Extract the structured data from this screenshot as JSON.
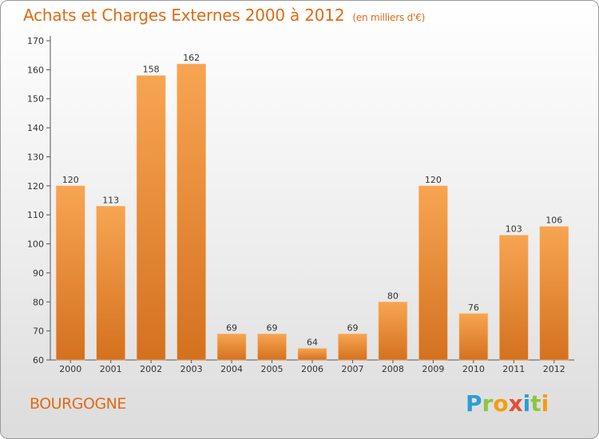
{
  "title": "Achats et Charges Externes 2000 à 2012",
  "unit": "(en milliers d'€)",
  "region": "BOURGOGNE",
  "logo": {
    "text": "Proxiti",
    "letters": [
      {
        "ch": "P",
        "color": "#2a9fd6"
      },
      {
        "ch": "r",
        "color": "#8cc63f"
      },
      {
        "ch": "o",
        "color": "#f39c12"
      },
      {
        "ch": "x",
        "color": "#e74c3c"
      },
      {
        "ch": "i",
        "color": "#2a9fd6"
      },
      {
        "ch": "t",
        "color": "#8cc63f"
      },
      {
        "ch": "i",
        "color": "#f39c12"
      }
    ]
  },
  "colors": {
    "bar_top": "#f7a552",
    "bar_bottom": "#d4711f",
    "accent": "#e06a14"
  },
  "chart_data": {
    "type": "bar",
    "categories": [
      "2000",
      "2001",
      "2002",
      "2003",
      "2004",
      "2005",
      "2006",
      "2007",
      "2008",
      "2009",
      "2010",
      "2011",
      "2012"
    ],
    "values": [
      120,
      113,
      158,
      162,
      69,
      69,
      64,
      69,
      80,
      120,
      76,
      103,
      106
    ],
    "title": "Achats et Charges Externes 2000 à 2012",
    "xlabel": "",
    "ylabel": "",
    "ylim": [
      60,
      170
    ],
    "yticks": [
      60,
      70,
      80,
      90,
      100,
      110,
      120,
      130,
      140,
      150,
      160,
      170
    ],
    "grid": false,
    "data_labels": true
  }
}
